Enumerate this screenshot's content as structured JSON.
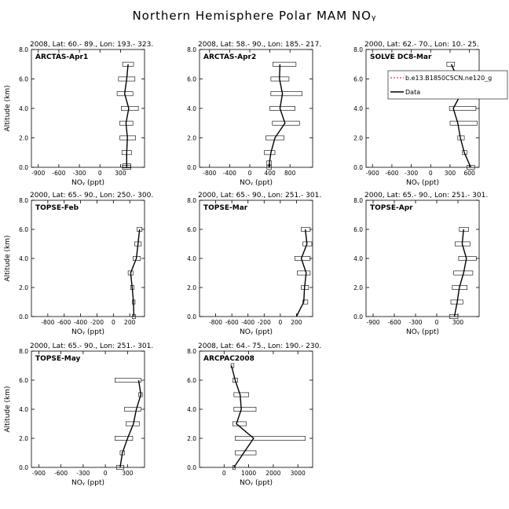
{
  "figure_title": "Northern Hemisphere Polar MAM NOᵧ",
  "ylabel": "Altitude (km)",
  "xlabel": "NOᵧ (ppt)",
  "legend": {
    "model_label": "b.e13.B1850C5CN.ne120_g",
    "data_label": "Data",
    "model_color": "#cc0000",
    "data_color": "#000000"
  },
  "chart_data": [
    {
      "type": "line",
      "header": "2008, Lat: 60.- 89., Lon: 193.- 323.",
      "campaign": "ARCTAS-Apr1",
      "xlim": [
        -1000,
        650
      ],
      "xticks": [
        -900,
        -600,
        -300,
        0,
        300
      ],
      "ylim": [
        0,
        8
      ],
      "yticks": [
        0,
        2,
        4,
        6,
        8
      ],
      "altitude": [
        0,
        0.1,
        1,
        2,
        3,
        4,
        5,
        6,
        7
      ],
      "value": [
        390,
        390,
        390,
        400,
        380,
        420,
        360,
        390,
        410
      ],
      "range_low": [
        330,
        330,
        320,
        290,
        290,
        310,
        250,
        270,
        330
      ],
      "range_high": [
        450,
        450,
        460,
        520,
        480,
        560,
        480,
        510,
        490
      ]
    },
    {
      "type": "line",
      "header": "2008, Lat: 58.- 90., Lon: 185.- 217.",
      "campaign": "ARCTAS-Apr2",
      "xlim": [
        -1000,
        1250
      ],
      "xticks": [
        -800,
        -400,
        0,
        400,
        800
      ],
      "ylim": [
        0,
        8
      ],
      "yticks": [
        0,
        2,
        4,
        6,
        8
      ],
      "altitude": [
        0,
        0.3,
        1,
        2,
        3,
        4,
        5,
        6,
        7
      ],
      "value": [
        380,
        390,
        420,
        500,
        700,
        600,
        650,
        590,
        600
      ],
      "range_low": [
        340,
        340,
        290,
        320,
        450,
        400,
        420,
        420,
        460
      ],
      "range_high": [
        430,
        430,
        500,
        680,
        990,
        900,
        1040,
        780,
        920
      ]
    },
    {
      "type": "line",
      "header": "2000, Lat: 62.- 70., Lon: 10.- 25.",
      "campaign": "SOLVE DC8-Mar",
      "xlim": [
        -1000,
        750
      ],
      "xticks": [
        -900,
        -600,
        -300,
        0,
        300,
        600
      ],
      "ylim": [
        0,
        8
      ],
      "yticks": [
        0,
        2,
        4,
        6,
        8
      ],
      "altitude": [
        0,
        1,
        2,
        3,
        4,
        5,
        6,
        7
      ],
      "value": [
        620,
        520,
        460,
        420,
        350,
        470,
        420,
        320
      ],
      "range_low": [
        560,
        490,
        420,
        300,
        290,
        400,
        320,
        250
      ],
      "range_high": [
        680,
        560,
        520,
        720,
        700,
        760,
        630,
        370
      ]
    },
    {
      "type": "line",
      "header": "2000, Lat: 65.- 90., Lon: 250.- 300.",
      "campaign": "TOPSE-Feb",
      "xlim": [
        -1000,
        380
      ],
      "xticks": [
        -800,
        -600,
        -400,
        -200,
        0,
        200
      ],
      "ylim": [
        0,
        8
      ],
      "yticks": [
        0,
        2,
        4,
        6,
        8
      ],
      "altitude": [
        0,
        1,
        2,
        3,
        4,
        5,
        6
      ],
      "value": [
        250,
        245,
        230,
        210,
        280,
        300,
        320
      ],
      "range_low": [
        230,
        230,
        210,
        180,
        240,
        260,
        290
      ],
      "range_high": [
        270,
        265,
        250,
        240,
        330,
        340,
        350
      ]
    },
    {
      "type": "line",
      "header": "2000, Lat: 65.- 90., Lon: 251.- 301.",
      "campaign": "TOPSE-Mar",
      "xlim": [
        -1000,
        400
      ],
      "xticks": [
        -800,
        -600,
        -400,
        -200,
        0,
        200
      ],
      "ylim": [
        0,
        8
      ],
      "yticks": [
        0,
        2,
        4,
        6,
        8
      ],
      "altitude": [
        0,
        1,
        2,
        3,
        4,
        5,
        6
      ],
      "value": [
        200,
        290,
        300,
        320,
        260,
        330,
        310
      ],
      "range_low": [
        200,
        280,
        260,
        210,
        180,
        280,
        260
      ],
      "range_high": [
        200,
        340,
        350,
        370,
        370,
        390,
        370
      ]
    },
    {
      "type": "line",
      "header": "2000, Lat: 65.- 90., Lon: 251.- 301.",
      "campaign": "TOPSE-Apr",
      "xlim": [
        -1000,
        600
      ],
      "xticks": [
        -900,
        -600,
        -300,
        0,
        300
      ],
      "ylim": [
        0,
        8
      ],
      "yticks": [
        0,
        2,
        4,
        6,
        8
      ],
      "altitude": [
        0,
        1,
        2,
        3,
        4,
        5,
        6
      ],
      "value": [
        250,
        290,
        320,
        380,
        420,
        360,
        380
      ],
      "range_low": [
        180,
        200,
        220,
        240,
        310,
        260,
        320
      ],
      "range_high": [
        300,
        370,
        430,
        510,
        560,
        470,
        450
      ]
    },
    {
      "type": "line",
      "header": "2000, Lat: 65.- 90., Lon: 251.- 301.",
      "campaign": "TOPSE-May",
      "xlim": [
        -1000,
        530
      ],
      "xticks": [
        -900,
        -600,
        -300,
        0,
        300
      ],
      "ylim": [
        0,
        8
      ],
      "yticks": [
        0,
        2,
        4,
        6,
        8
      ],
      "altitude": [
        0,
        1,
        2,
        3,
        4,
        5,
        6
      ],
      "value": [
        200,
        230,
        300,
        380,
        420,
        480,
        450
      ],
      "range_low": [
        150,
        200,
        130,
        280,
        260,
        450,
        130
      ],
      "range_high": [
        250,
        260,
        370,
        460,
        480,
        500,
        480
      ]
    },
    {
      "type": "line",
      "header": "2008, Lat: 64.- 75., Lon: 190.- 230.",
      "campaign": "ARCPAC2008",
      "xlim": [
        -1000,
        3600
      ],
      "xticks": [
        0,
        1000,
        2000,
        3000
      ],
      "ylim": [
        0,
        8
      ],
      "yticks": [
        0,
        2,
        4,
        6,
        8
      ],
      "altitude": [
        0,
        1,
        2,
        3,
        4,
        5,
        6,
        7
      ],
      "value": [
        400,
        800,
        1200,
        500,
        700,
        650,
        450,
        300
      ],
      "range_low": [
        350,
        450,
        450,
        350,
        400,
        400,
        350,
        280
      ],
      "range_high": [
        450,
        1300,
        3300,
        900,
        1300,
        1000,
        550,
        400
      ]
    }
  ]
}
